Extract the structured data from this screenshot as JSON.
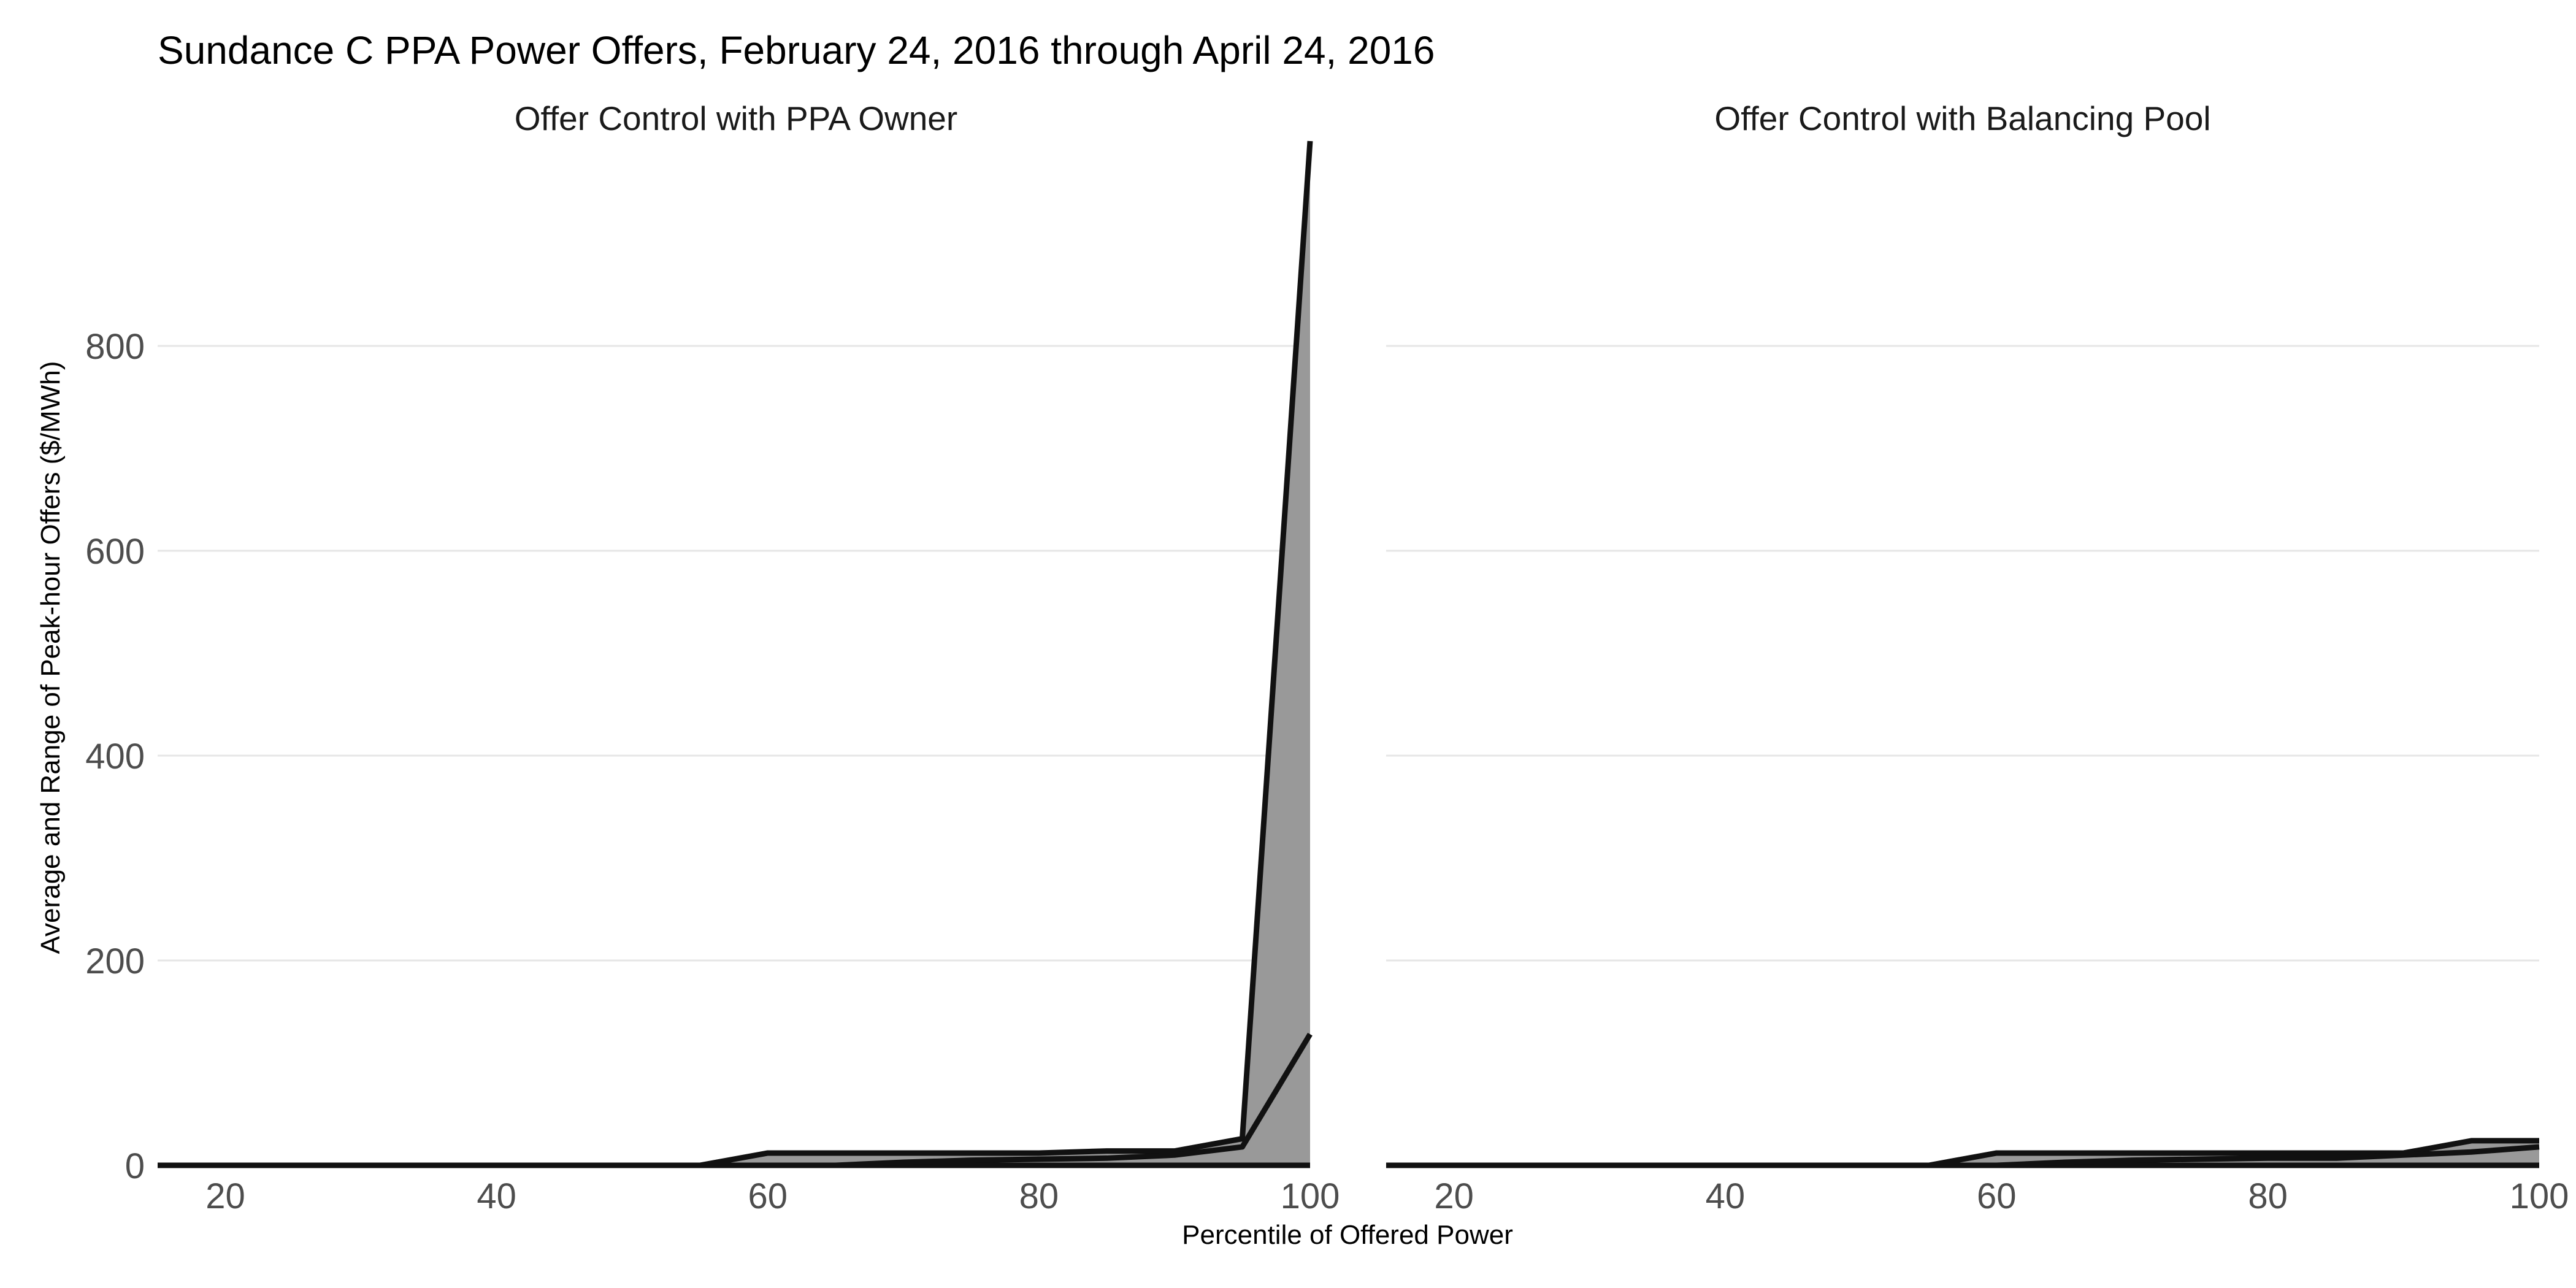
{
  "chart_data": {
    "type": "area",
    "title": "Sundance C PPA Power Offers, February 24, 2016 through April 24, 2016",
    "xlabel": "Percentile of Offered Power",
    "ylabel": "Average and Range of Peak-hour Offers  ($/MWh)",
    "xlim": [
      15,
      100
    ],
    "ylim": [
      0,
      1000
    ],
    "x_ticks": [
      20,
      40,
      60,
      80,
      100
    ],
    "y_ticks": [
      0,
      200,
      400,
      600,
      800
    ],
    "grid": true,
    "colors": {
      "band": "#999999",
      "line": "#111111",
      "grid": "#e6e6e6",
      "tick_text": "#4d4d4d"
    },
    "panels": [
      {
        "name": "Offer Control with PPA Owner",
        "x": [
          15,
          20,
          25,
          30,
          35,
          40,
          45,
          50,
          55,
          60,
          65,
          70,
          75,
          80,
          85,
          90,
          95,
          100
        ],
        "min": [
          0,
          0,
          0,
          0,
          0,
          0,
          0,
          0,
          0,
          0,
          0,
          0,
          0,
          0,
          0,
          0,
          0,
          0
        ],
        "max": [
          0,
          0,
          0,
          0,
          0,
          0,
          0,
          0,
          0,
          12,
          12,
          12,
          12,
          12,
          14,
          14,
          26,
          1000
        ],
        "average": [
          0,
          0,
          0,
          0,
          0,
          0,
          0,
          0,
          0,
          0,
          0,
          3,
          5,
          6,
          7,
          10,
          18,
          128
        ]
      },
      {
        "name": "Offer Control with Balancing Pool",
        "x": [
          15,
          20,
          25,
          30,
          35,
          40,
          45,
          50,
          55,
          60,
          65,
          70,
          75,
          80,
          85,
          90,
          95,
          100
        ],
        "min": [
          0,
          0,
          0,
          0,
          0,
          0,
          0,
          0,
          0,
          0,
          0,
          0,
          0,
          0,
          0,
          0,
          0,
          0
        ],
        "max": [
          0,
          0,
          0,
          0,
          0,
          0,
          0,
          0,
          0,
          12,
          12,
          12,
          12,
          12,
          12,
          12,
          24,
          24
        ],
        "average": [
          0,
          0,
          0,
          0,
          0,
          0,
          0,
          0,
          0,
          0,
          3,
          5,
          6,
          7,
          7,
          10,
          13,
          18
        ]
      }
    ]
  }
}
